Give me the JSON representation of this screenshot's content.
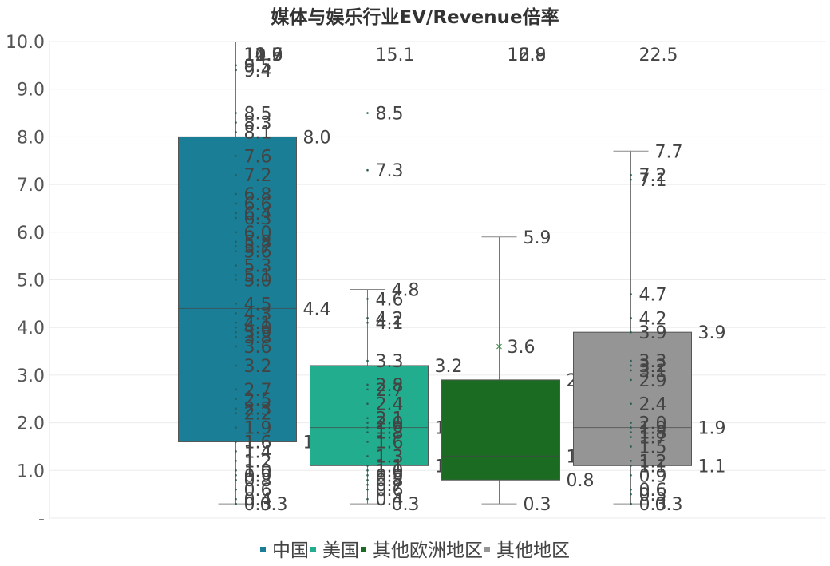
{
  "chart_data": {
    "type": "boxplot",
    "title": "媒体与娱乐行业EV/Revenue倍率",
    "ylim": [
      0,
      10
    ],
    "y_ticks": [
      "10.0",
      "9.0",
      "8.0",
      "7.0",
      "6.0",
      "5.0",
      "4.0",
      "3.0",
      "2.0",
      "1.0",
      "-"
    ],
    "grid": true,
    "legend_position": "bottom",
    "series": [
      {
        "name": "中国",
        "color": "#1a7f96",
        "min": 0.3,
        "q1": 1.6,
        "median": 4.4,
        "q3": 8.0,
        "max": 10.0,
        "stat_labels": [
          "8.0",
          "4.4",
          "1.6"
        ],
        "min_label": "0.3",
        "overflow_labels": [
          "14.0",
          "12.5",
          "11.6",
          "10.9",
          "10.7"
        ],
        "points": [
          9.5,
          9.4,
          8.5,
          8.3,
          8.1,
          7.6,
          7.2,
          6.8,
          6.6,
          6.4,
          6.3,
          6.0,
          5.8,
          5.7,
          5.6,
          5.3,
          5.1,
          5.0,
          4.5,
          4.3,
          4.1,
          4.0,
          3.9,
          3.8,
          3.6,
          3.2,
          2.7,
          2.5,
          2.3,
          2.2,
          1.9,
          1.6,
          1.4,
          1.2,
          1.0,
          0.9,
          0.8,
          0.6,
          0.4,
          0.3
        ]
      },
      {
        "name": "美国",
        "color": "#22ae8e",
        "min": 0.3,
        "q1": 1.1,
        "median": 1.9,
        "q3": 3.2,
        "max": 4.8,
        "stat_labels": [
          "4.8",
          "3.2",
          "1.9",
          "1.1"
        ],
        "min_label": "0.3",
        "overflow_labels": [
          "15.1"
        ],
        "points": [
          8.5,
          7.3,
          4.6,
          4.2,
          4.1,
          3.3,
          2.8,
          2.7,
          2.4,
          2.1,
          2.0,
          1.9,
          1.8,
          1.6,
          1.3,
          1.1,
          1.0,
          0.9,
          0.8,
          0.7,
          0.6,
          0.4
        ]
      },
      {
        "name": "其他欧洲地区",
        "color": "#1b6b23",
        "min": 0.3,
        "q1": 0.8,
        "median": 1.3,
        "q3": 2.9,
        "max": 5.9,
        "mean": 3.6,
        "stat_labels": [
          "5.9",
          "3.6",
          "2.9",
          "1.3",
          "0.8"
        ],
        "min_label": "0.3",
        "overflow_labels": [
          "16.9",
          "12.8"
        ],
        "points": []
      },
      {
        "name": "其他地区",
        "color": "#959595",
        "min": 0.3,
        "q1": 1.1,
        "median": 1.9,
        "q3": 3.9,
        "max": 7.7,
        "stat_labels": [
          "7.7",
          "3.9",
          "1.9",
          "1.1"
        ],
        "min_label": "0.3",
        "overflow_labels": [
          "22.5"
        ],
        "points": [
          7.2,
          7.1,
          4.7,
          4.2,
          3.9,
          3.3,
          3.2,
          3.1,
          2.9,
          2.4,
          2.0,
          1.9,
          1.8,
          1.7,
          1.5,
          1.2,
          1.1,
          0.9,
          0.6,
          0.5,
          0.3
        ]
      }
    ]
  }
}
